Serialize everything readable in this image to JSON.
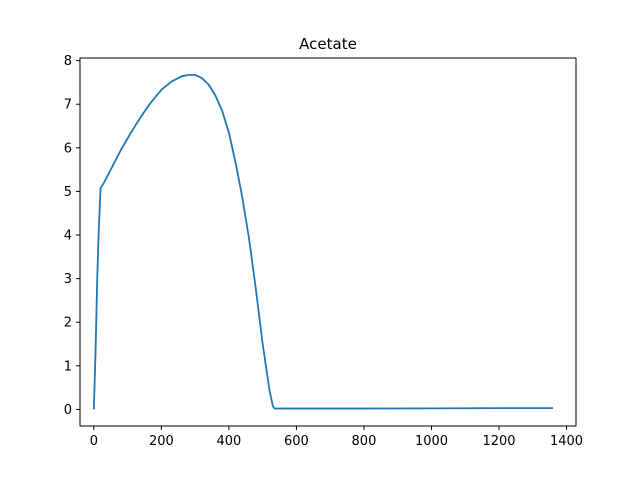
{
  "chart_data": {
    "type": "line",
    "title": "Acetate",
    "xlabel": "",
    "ylabel": "",
    "xlim": [
      -41,
      1428
    ],
    "ylim": [
      -0.38,
      8.06
    ],
    "x_ticks": [
      0,
      200,
      400,
      600,
      800,
      1000,
      1200,
      1400
    ],
    "y_ticks": [
      0,
      1,
      2,
      3,
      4,
      5,
      6,
      7,
      8
    ],
    "grid": false,
    "legend": "none",
    "series": [
      {
        "color": "#1f77b4",
        "x": [
          0,
          5,
          10,
          15,
          20,
          30,
          50,
          80,
          110,
          140,
          170,
          200,
          230,
          260,
          280,
          300,
          320,
          340,
          360,
          380,
          400,
          420,
          440,
          460,
          480,
          500,
          520,
          530,
          535,
          600,
          800,
          1000,
          1200,
          1360
        ],
        "y": [
          0,
          1.3,
          3.0,
          4.2,
          5.08,
          5.2,
          5.5,
          5.95,
          6.35,
          6.72,
          7.05,
          7.33,
          7.52,
          7.64,
          7.67,
          7.67,
          7.6,
          7.45,
          7.2,
          6.85,
          6.35,
          5.65,
          4.85,
          3.9,
          2.75,
          1.5,
          0.45,
          0.08,
          0.02,
          0.02,
          0.02,
          0.025,
          0.03,
          0.03
        ]
      }
    ]
  }
}
